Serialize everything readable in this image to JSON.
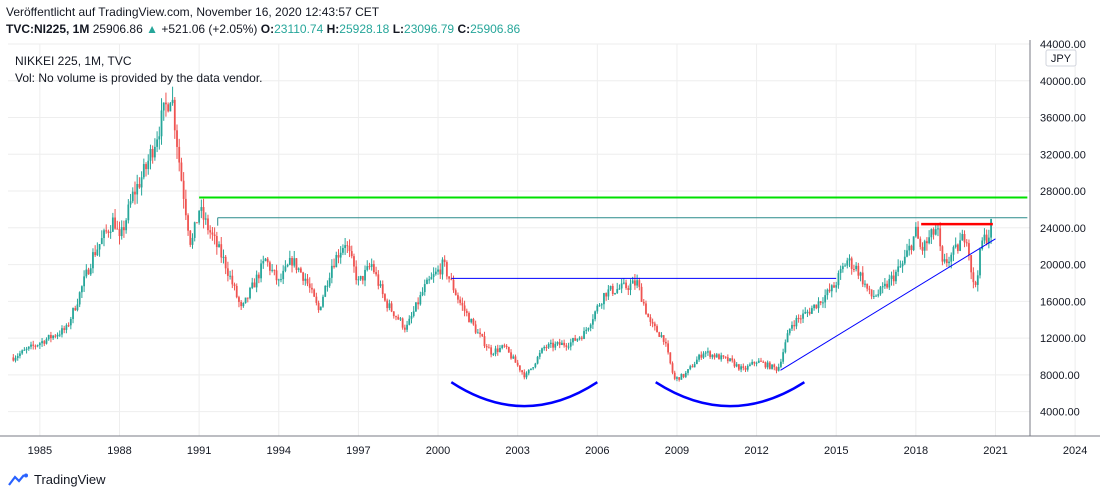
{
  "header": {
    "published": "Veröffentlicht auf TradingView.com, November 16, 2020 12:43:57 CET",
    "symbol": "TVC:NI225, 1M",
    "last": "25906.86",
    "change": "+521.06 (+2.05%)",
    "o_label": "O:",
    "o_val": "23110.74",
    "h_label": "H:",
    "h_val": "25928.18",
    "l_label": "L:",
    "l_val": "23096.79",
    "c_label": "C:",
    "c_val": "25906.86"
  },
  "legend": {
    "title": "NIKKEI 225, 1M, TVC",
    "volume_note": "Vol: No volume is provided by the data vendor."
  },
  "footer": {
    "brand": "TradingView"
  },
  "colors": {
    "up": "#26a69a",
    "down": "#ef5350",
    "blueLine": "#0000ff",
    "green": "#00e000",
    "red": "#ff0000",
    "teal": "#2a8c8c",
    "grid": "#eeeeee"
  },
  "chart_data": {
    "type": "candlestick",
    "title": "NIKKEI 225, 1M, TVC",
    "currency": "JPY",
    "ylim": [
      2000,
      44000
    ],
    "xlim": [
      1983.8,
      2022.3
    ],
    "y_ticks": [
      "4000.00",
      "8000.00",
      "12000.00",
      "16000.00",
      "20000.00",
      "24000.00",
      "28000.00",
      "32000.00",
      "36000.00",
      "40000.00",
      "44000.00"
    ],
    "x_ticks": [
      "1985",
      "1988",
      "1991",
      "1994",
      "1997",
      "2000",
      "2003",
      "2006",
      "2009",
      "2012",
      "2015",
      "2018",
      "2021",
      "2024"
    ],
    "price_path": [
      [
        1984.0,
        9900
      ],
      [
        1985.0,
        11500
      ],
      [
        1986.0,
        13000
      ],
      [
        1986.4,
        16000
      ],
      [
        1987.0,
        21000
      ],
      [
        1987.8,
        25000
      ],
      [
        1988.0,
        22500
      ],
      [
        1988.5,
        27500
      ],
      [
        1989.0,
        30500
      ],
      [
        1989.5,
        35000
      ],
      [
        1989.95,
        38916
      ],
      [
        1990.3,
        30000
      ],
      [
        1990.7,
        22000
      ],
      [
        1991.0,
        26000
      ],
      [
        1991.5,
        23000
      ],
      [
        1992.0,
        20000
      ],
      [
        1992.6,
        15000
      ],
      [
        1993.0,
        17500
      ],
      [
        1993.5,
        20500
      ],
      [
        1994.0,
        18000
      ],
      [
        1994.5,
        20500
      ],
      [
        1995.0,
        18500
      ],
      [
        1995.5,
        15000
      ],
      [
        1996.0,
        20000
      ],
      [
        1996.5,
        22500
      ],
      [
        1997.0,
        18000
      ],
      [
        1997.5,
        20000
      ],
      [
        1998.0,
        16000
      ],
      [
        1998.8,
        13000
      ],
      [
        1999.5,
        17500
      ],
      [
        2000.2,
        20000
      ],
      [
        2000.8,
        16000
      ],
      [
        2001.5,
        12500
      ],
      [
        2002.0,
        10500
      ],
      [
        2002.5,
        11000
      ],
      [
        2003.3,
        7800
      ],
      [
        2004.0,
        11000
      ],
      [
        2005.0,
        11500
      ],
      [
        2005.5,
        12500
      ],
      [
        2006.3,
        17000
      ],
      [
        2007.0,
        17500
      ],
      [
        2007.5,
        18000
      ],
      [
        2008.0,
        13500
      ],
      [
        2008.5,
        12000
      ],
      [
        2008.9,
        7500
      ],
      [
        2009.3,
        8000
      ],
      [
        2010.0,
        10500
      ],
      [
        2011.0,
        9500
      ],
      [
        2011.5,
        8500
      ],
      [
        2012.0,
        9500
      ],
      [
        2012.8,
        8600
      ],
      [
        2013.3,
        13500
      ],
      [
        2014.0,
        15000
      ],
      [
        2014.9,
        17500
      ],
      [
        2015.4,
        20500
      ],
      [
        2015.8,
        19500
      ],
      [
        2016.3,
        16500
      ],
      [
        2016.7,
        17000
      ],
      [
        2017.5,
        20000
      ],
      [
        2018.0,
        23500
      ],
      [
        2018.2,
        21500
      ],
      [
        2018.8,
        24000
      ],
      [
        2019.0,
        19800
      ],
      [
        2019.5,
        21500
      ],
      [
        2019.9,
        23500
      ],
      [
        2020.2,
        17000
      ],
      [
        2020.5,
        22500
      ],
      [
        2020.8,
        23500
      ],
      [
        2020.9,
        25906
      ]
    ],
    "annotations": {
      "green_resistance": {
        "x": [
          1991.0,
          2022.2
        ],
        "y": 27300
      },
      "teal_line": {
        "x": [
          1991.7,
          2022.2
        ],
        "y": 25100
      },
      "red_line": {
        "x": [
          2018.2,
          2020.9
        ],
        "y": 24400
      },
      "neckline": {
        "x": [
          2000.5,
          2015.0
        ],
        "y": 18500
      },
      "trendline": {
        "x": [
          2012.9,
          2021.0
        ],
        "y": [
          8500,
          22800
        ]
      },
      "arc1": {
        "x": [
          2000.5,
          2006.0
        ],
        "y_ends": 7200,
        "y_bottom": 4600
      },
      "arc2": {
        "x": [
          2008.2,
          2013.8
        ],
        "y_ends": 7200,
        "y_bottom": 4600
      }
    }
  }
}
